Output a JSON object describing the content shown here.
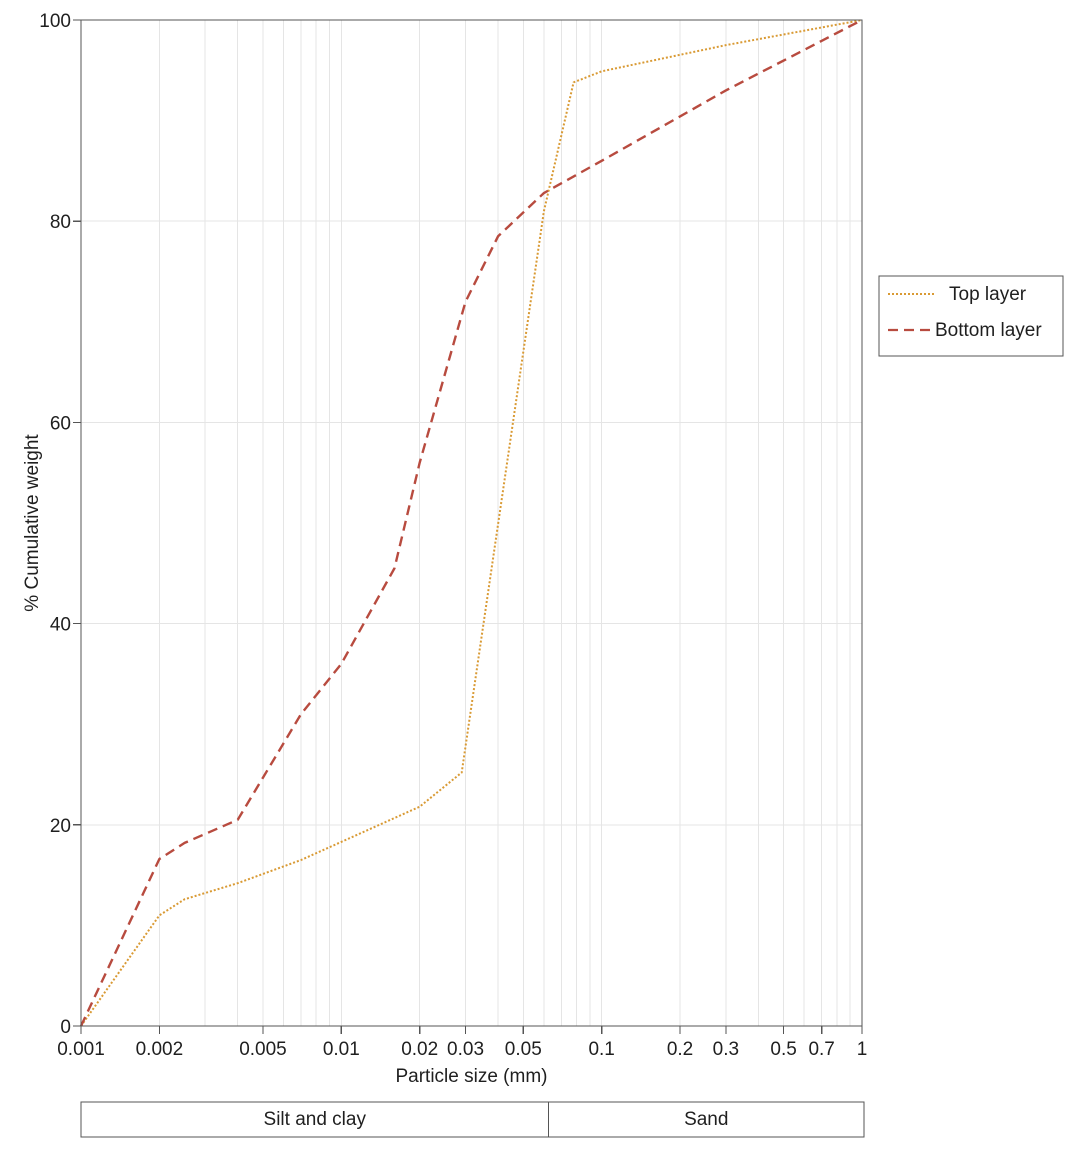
{
  "chart_data": {
    "type": "line",
    "title": "",
    "xlabel": "Particle size (mm)",
    "ylabel": "% Cumulative weight",
    "x_scale": "log",
    "xlim": [
      0.001,
      1
    ],
    "ylim": [
      0,
      100
    ],
    "grid": true,
    "legend_position": "right",
    "x_tick_labels": [
      {
        "value": 0.001,
        "label": "0.001"
      },
      {
        "value": 0.002,
        "label": "0.002"
      },
      {
        "value": 0.005,
        "label": "0.005"
      },
      {
        "value": 0.01,
        "label": "0.01"
      },
      {
        "value": 0.02,
        "label": "0.02"
      },
      {
        "value": 0.03,
        "label": "0.03"
      },
      {
        "value": 0.05,
        "label": "0.05"
      },
      {
        "value": 0.1,
        "label": "0.1"
      },
      {
        "value": 0.2,
        "label": "0.2"
      },
      {
        "value": 0.3,
        "label": "0.3"
      },
      {
        "value": 0.5,
        "label": "0.5"
      },
      {
        "value": 0.7,
        "label": "0.7"
      },
      {
        "value": 1,
        "label": "1"
      }
    ],
    "x_grid_values": [
      0.001,
      0.002,
      0.003,
      0.004,
      0.005,
      0.006,
      0.007,
      0.008,
      0.009,
      0.01,
      0.02,
      0.03,
      0.04,
      0.05,
      0.06,
      0.07,
      0.08,
      0.09,
      0.1,
      0.2,
      0.3,
      0.4,
      0.5,
      0.6,
      0.7,
      0.8,
      0.9,
      1
    ],
    "y_tick_labels": [
      {
        "value": 0,
        "label": "0"
      },
      {
        "value": 20,
        "label": "20"
      },
      {
        "value": 40,
        "label": "40"
      },
      {
        "value": 60,
        "label": "60"
      },
      {
        "value": 80,
        "label": "80"
      },
      {
        "value": 100,
        "label": "100"
      }
    ],
    "series": [
      {
        "name": "Top layer",
        "color": "#d99a34",
        "line_style": "dotted",
        "points": [
          {
            "x": 0.001,
            "y": 0
          },
          {
            "x": 0.002,
            "y": 11
          },
          {
            "x": 0.0025,
            "y": 12.6
          },
          {
            "x": 0.004,
            "y": 14.2
          },
          {
            "x": 0.007,
            "y": 16.5
          },
          {
            "x": 0.01,
            "y": 18.3
          },
          {
            "x": 0.02,
            "y": 21.8
          },
          {
            "x": 0.029,
            "y": 25.2
          },
          {
            "x": 0.06,
            "y": 81
          },
          {
            "x": 0.078,
            "y": 93.8
          },
          {
            "x": 0.1,
            "y": 94.9
          },
          {
            "x": 0.3,
            "y": 97.5
          },
          {
            "x": 1,
            "y": 100
          }
        ]
      },
      {
        "name": "Bottom layer",
        "color": "#b84b3f",
        "line_style": "dashed",
        "points": [
          {
            "x": 0.001,
            "y": 0
          },
          {
            "x": 0.002,
            "y": 16.6
          },
          {
            "x": 0.0025,
            "y": 18.2
          },
          {
            "x": 0.004,
            "y": 20.5
          },
          {
            "x": 0.007,
            "y": 31
          },
          {
            "x": 0.01,
            "y": 36
          },
          {
            "x": 0.016,
            "y": 45.5
          },
          {
            "x": 0.02,
            "y": 56
          },
          {
            "x": 0.03,
            "y": 72
          },
          {
            "x": 0.04,
            "y": 78.5
          },
          {
            "x": 0.06,
            "y": 82.8
          },
          {
            "x": 0.1,
            "y": 86
          },
          {
            "x": 0.3,
            "y": 93
          },
          {
            "x": 1,
            "y": 100
          }
        ]
      }
    ],
    "classification_bands": [
      {
        "name": "Silt and clay",
        "x_from": 0.001,
        "x_to": 0.0625
      },
      {
        "name": "Sand",
        "x_from": 0.0625,
        "x_to": 1
      }
    ]
  }
}
